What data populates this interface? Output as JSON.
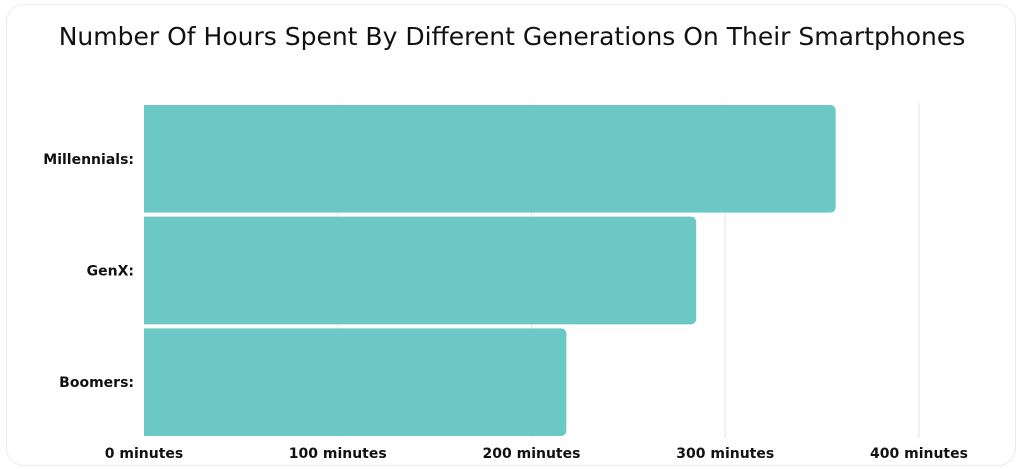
{
  "chart_data": {
    "type": "bar",
    "orientation": "horizontal",
    "title": "Number Of Hours Spent By Different Generations On Their Smartphones",
    "categories": [
      "Millennials:",
      "GenX:",
      "Boomers:"
    ],
    "values": [
      357,
      285,
      218
    ],
    "xlim": [
      0,
      400
    ],
    "x_ticks": [
      0,
      100,
      200,
      300,
      400
    ],
    "x_tick_labels": [
      "0 minutes",
      "100 minutes",
      "200 minutes",
      "300 minutes",
      "400 minutes"
    ],
    "xlabel": "",
    "ylabel": "",
    "grid": true,
    "bar_color": "#6cc8c4",
    "grid_color": "#e6e6e6"
  }
}
